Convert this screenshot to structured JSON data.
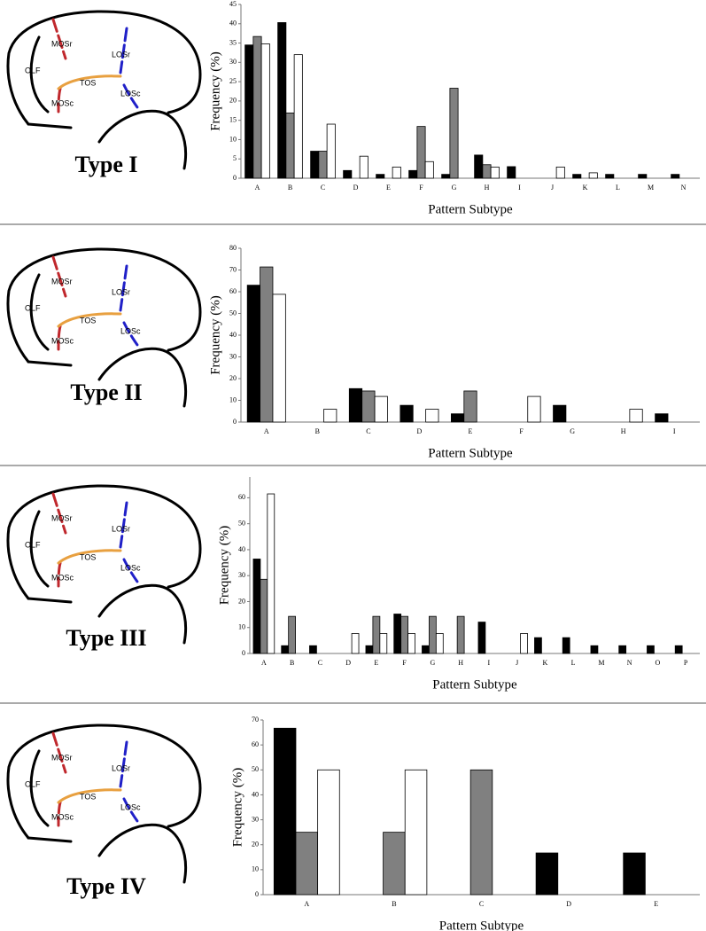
{
  "chart_data": [
    {
      "type": "bar",
      "title": "Type I",
      "annotations": [
        "OLF",
        "MOSr",
        "MOSc",
        "TOS",
        "LOSr",
        "LOSc"
      ],
      "xlabel": "Pattern Subtype",
      "ylabel": "Frequency (%)",
      "categories": [
        "A",
        "B",
        "C",
        "D",
        "E",
        "F",
        "G",
        "H",
        "I",
        "J",
        "K",
        "L",
        "M",
        "N"
      ],
      "series": [
        {
          "color": "#000000",
          "values": [
            34.5,
            40.3,
            7,
            2,
            1,
            2,
            1,
            6,
            3,
            0,
            1,
            1,
            1,
            1
          ]
        },
        {
          "color": "#808080",
          "values": [
            36.7,
            16.9,
            7,
            0,
            0,
            13.4,
            23.3,
            3.5,
            0,
            0,
            0,
            0,
            0,
            0
          ]
        },
        {
          "color": "#ffffff",
          "values": [
            34.8,
            32,
            14,
            5.7,
            2.9,
            4.3,
            0,
            2.9,
            0,
            2.9,
            1.4,
            0,
            0,
            0
          ]
        }
      ],
      "ylim": [
        0,
        45
      ],
      "yticks": [
        0,
        5,
        10,
        15,
        20,
        25,
        30,
        35,
        40,
        45
      ]
    },
    {
      "type": "bar",
      "title": "Type II",
      "annotations": [
        "OLF",
        "MOSr",
        "MOSc",
        "TOS",
        "LOSr",
        "LOSc"
      ],
      "xlabel": "Pattern Subtype",
      "ylabel": "Frequency (%)",
      "categories": [
        "A",
        "B",
        "C",
        "D",
        "E",
        "F",
        "G",
        "H",
        "I"
      ],
      "series": [
        {
          "color": "#000000",
          "values": [
            63,
            0,
            15.4,
            7.7,
            3.8,
            0,
            7.7,
            0,
            3.8
          ]
        },
        {
          "color": "#808080",
          "values": [
            71.4,
            0,
            14.3,
            0,
            14.3,
            0,
            0,
            0,
            0
          ]
        },
        {
          "color": "#ffffff",
          "values": [
            58.8,
            5.9,
            11.8,
            5.9,
            0,
            11.8,
            0,
            5.9,
            0
          ]
        }
      ],
      "ylim": [
        0,
        80
      ],
      "yticks": [
        0,
        10,
        20,
        30,
        40,
        50,
        60,
        70,
        80
      ]
    },
    {
      "type": "bar",
      "title": "Type III",
      "annotations": [
        "OLF",
        "MOSr",
        "MOSc",
        "TOS",
        "LOSr",
        "LOSc"
      ],
      "xlabel": "Pattern Subtype",
      "ylabel": "Frequency (%)",
      "categories": [
        "A",
        "B",
        "C",
        "D",
        "E",
        "F",
        "G",
        "H",
        "I",
        "J",
        "K",
        "L",
        "M",
        "N",
        "O",
        "P"
      ],
      "series": [
        {
          "color": "#000000",
          "values": [
            36.4,
            3,
            3,
            0,
            3,
            15.2,
            3,
            0,
            12.1,
            0,
            6.1,
            6.1,
            3,
            3,
            3,
            3
          ]
        },
        {
          "color": "#808080",
          "values": [
            28.6,
            14.3,
            0,
            0,
            14.3,
            14.3,
            14.3,
            14.3,
            0,
            0,
            0,
            0,
            0,
            0,
            0,
            0
          ]
        },
        {
          "color": "#ffffff",
          "values": [
            61.5,
            0,
            0,
            7.7,
            7.7,
            7.7,
            7.7,
            0,
            0,
            7.7,
            0,
            0,
            0,
            0,
            0,
            0
          ]
        }
      ],
      "ylim": [
        0,
        68
      ],
      "yticks": [
        0,
        10,
        20,
        30,
        40,
        50,
        60
      ]
    },
    {
      "type": "bar",
      "title": "Type IV",
      "annotations": [
        "OLF",
        "MOSr",
        "MOSc",
        "TOS",
        "LOSr",
        "LOSc"
      ],
      "xlabel": "Pattern Subtype",
      "ylabel": "Frequency (%)",
      "categories": [
        "A",
        "B",
        "C",
        "D",
        "E"
      ],
      "series": [
        {
          "color": "#000000",
          "values": [
            66.7,
            0,
            0,
            16.7,
            16.7
          ]
        },
        {
          "color": "#808080",
          "values": [
            25,
            25,
            50,
            0,
            0
          ]
        },
        {
          "color": "#ffffff",
          "values": [
            50,
            50,
            0,
            0,
            0
          ]
        }
      ],
      "ylim": [
        0,
        70
      ],
      "yticks": [
        0,
        10,
        20,
        30,
        40,
        50,
        60,
        70
      ]
    }
  ]
}
